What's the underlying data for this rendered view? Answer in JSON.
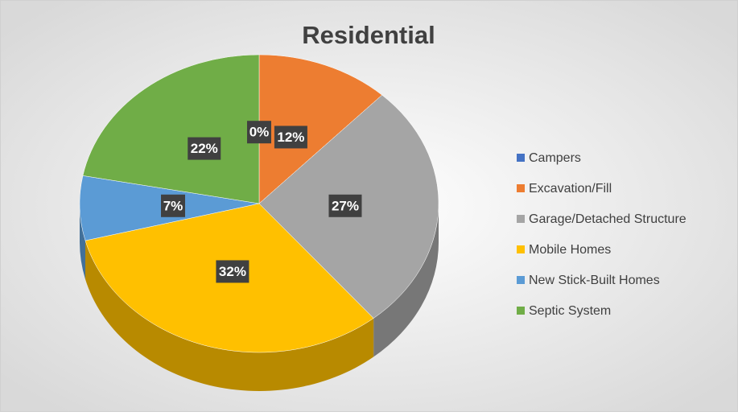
{
  "chart_data": {
    "type": "pie",
    "title": "Residential",
    "categories": [
      "Campers",
      "Excavation/Fill",
      "Garage/Detached Structure",
      "Mobile Homes",
      "New Stick-Built Homes",
      "Septic System"
    ],
    "values": [
      0,
      12,
      27,
      32,
      7,
      22
    ],
    "value_labels": [
      "0%",
      "12%",
      "27%",
      "32%",
      "7%",
      "22%"
    ],
    "colors": [
      "#4472c4",
      "#ed7d31",
      "#a5a5a5",
      "#ffc000",
      "#5b9bd5",
      "#70ad47"
    ],
    "legend": "right"
  }
}
